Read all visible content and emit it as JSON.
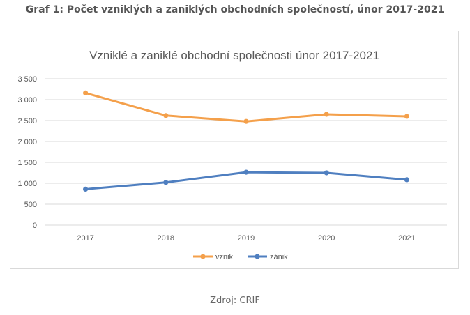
{
  "page": {
    "heading": "Graf 1: Počet vzniklých a zaniklých obchodních společností, únor 2017-2021",
    "source": "Zdroj: CRIF"
  },
  "chart_data": {
    "type": "line",
    "title": "Vzniklé a zaniklé obchodní společnosti únor 2017-2021",
    "xlabel": "",
    "ylabel": "",
    "categories": [
      "2017",
      "2018",
      "2019",
      "2020",
      "2021"
    ],
    "ylim": [
      0,
      3500
    ],
    "yticks": [
      0,
      500,
      1000,
      1500,
      2000,
      2500,
      3000,
      3500
    ],
    "ytick_labels": [
      "0",
      "500",
      "1 000",
      "1 500",
      "2 000",
      "2 500",
      "3 000",
      "3 500"
    ],
    "grid": true,
    "legend_position": "bottom",
    "series": [
      {
        "name": "vznik",
        "color": "#f4a04b",
        "values": [
          3160,
          2620,
          2480,
          2650,
          2600
        ]
      },
      {
        "name": "zánik",
        "color": "#4f7fc0",
        "values": [
          860,
          1020,
          1265,
          1250,
          1085
        ]
      }
    ]
  }
}
